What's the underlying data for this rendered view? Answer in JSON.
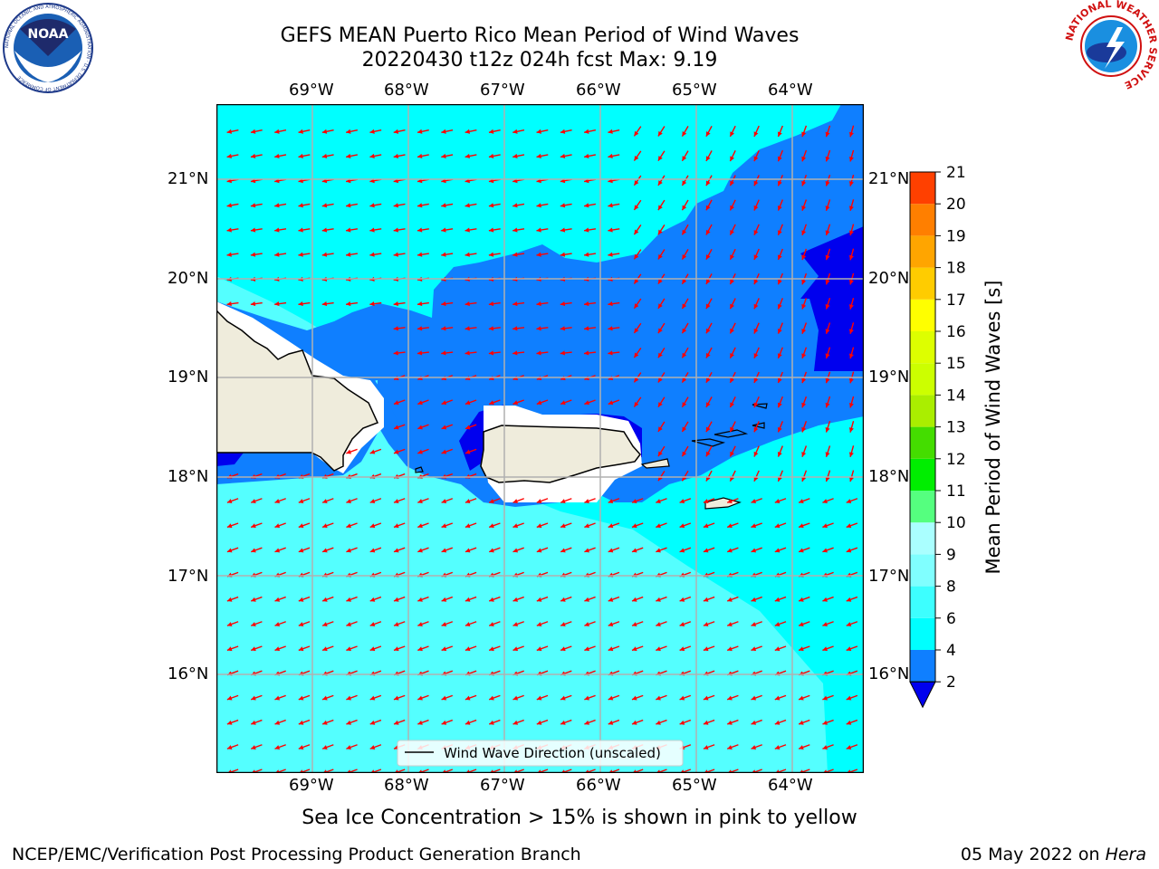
{
  "title_line1": "GEFS MEAN Puerto Rico Mean Period of Wind Waves",
  "title_line2": "20220430 t12z 024h fcst   Max: 9.19",
  "logos": {
    "noaa": {
      "text": "NOAA",
      "ring_text": "NATIONAL OCEANIC AND ATMOSPHERIC ADMINISTRATION · U.S. DEPARTMENT OF COMMERCE"
    },
    "nws": {
      "ring_text": "NATIONAL WEATHER SERVICE"
    }
  },
  "map": {
    "lon_labels": [
      "69°W",
      "68°W",
      "67°W",
      "66°W",
      "65°W",
      "64°W"
    ],
    "lat_labels": [
      "21°N",
      "20°N",
      "19°N",
      "18°N",
      "17°N",
      "16°N"
    ],
    "legend_label": "Wind Wave Direction (unscaled)",
    "colors": {
      "ocean_light": "#54ffff",
      "ocean_cyan": "#00ffff",
      "ocean_blue": "#0f7fff",
      "ocean_dark": "#0000ee",
      "land": "#efecdc",
      "arrow": "#ff0000",
      "grid": "#b0b0b0"
    }
  },
  "colorbar": {
    "label": "Mean Period of Wind Waves [s]",
    "ticks": [
      "2",
      "4",
      "6",
      "8",
      "9",
      "10",
      "11",
      "12",
      "13",
      "14",
      "15",
      "16",
      "17",
      "18",
      "19",
      "20",
      "21"
    ],
    "colors": [
      "#0f7fff",
      "#00ffff",
      "#3dffff",
      "#80ffff",
      "#aaffff",
      "#55ff7f",
      "#00ee00",
      "#44dd00",
      "#aaee00",
      "#ccff00",
      "#ddff00",
      "#ffff00",
      "#ffcc00",
      "#ffa500",
      "#ff7f00",
      "#ff4000",
      "#ff1a00"
    ],
    "under_color": "#0000ee"
  },
  "ice_note": "Sea Ice Concentration > 15% is shown in pink to yellow",
  "footer_left": "NCEP/EMC/Verification Post Processing Product Generation Branch",
  "footer_right_prefix": "05 May 2022 on ",
  "footer_right_host": "Hera"
}
